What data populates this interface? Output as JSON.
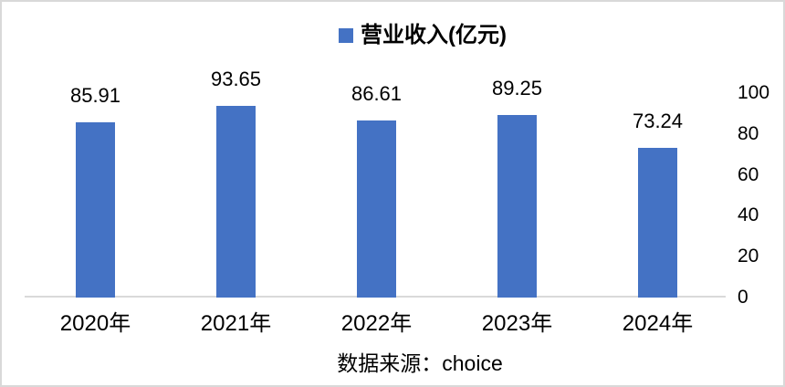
{
  "chart_data": {
    "type": "bar",
    "title": "",
    "categories": [
      "2020年",
      "2021年",
      "2022年",
      "2023年",
      "2024年"
    ],
    "series": [
      {
        "name": "营业收入(亿元)",
        "values": [
          85.91,
          93.65,
          86.61,
          89.25,
          73.24
        ]
      }
    ],
    "data_labels": [
      "85.91",
      "93.65",
      "86.61",
      "89.25",
      "73.24"
    ],
    "xlabel": "",
    "ylabel": "",
    "y_axis": {
      "side": "right",
      "min": 0,
      "max": 100,
      "tick_interval": 20,
      "ticks": [
        0,
        20,
        40,
        60,
        80,
        100
      ]
    },
    "gridlines": false,
    "legend_position": "top",
    "colors": {
      "bar": "#4472C4",
      "axis_line": "#D9D9D9",
      "text": "#000000",
      "frame_border": "#D9D9D9"
    },
    "caption": "数据来源：choice"
  }
}
